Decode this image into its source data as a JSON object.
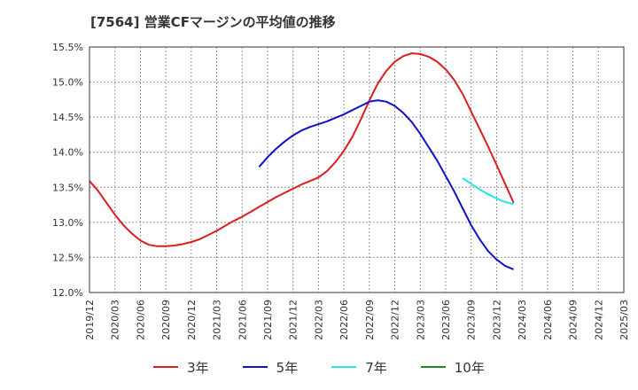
{
  "chart_data": {
    "type": "line",
    "title": "[7564]  営業CFマージンの平均値の推移",
    "xlabel": "",
    "ylabel": "",
    "ylim": [
      12.0,
      15.5
    ],
    "y_ticks": [
      "12.0%",
      "12.5%",
      "13.0%",
      "13.5%",
      "14.0%",
      "14.5%",
      "15.0%",
      "15.5%"
    ],
    "x_ticks": [
      "2019/12",
      "2020/03",
      "2020/06",
      "2020/09",
      "2020/12",
      "2021/03",
      "2021/06",
      "2021/09",
      "2021/12",
      "2022/03",
      "2022/06",
      "2022/09",
      "2022/12",
      "2023/03",
      "2023/06",
      "2023/09",
      "2023/12",
      "2024/03",
      "2024/06",
      "2024/09",
      "2024/12",
      "2025/03"
    ],
    "x_range": [
      "2019/12",
      "2025/03"
    ],
    "grid": true,
    "legend_position": "bottom",
    "series": [
      {
        "name": "3年",
        "color": "#dd1c1c",
        "points": [
          [
            "2019/12",
            13.59
          ],
          [
            "2020/01",
            13.45
          ],
          [
            "2020/02",
            13.28
          ],
          [
            "2020/03",
            13.11
          ],
          [
            "2020/04",
            12.96
          ],
          [
            "2020/05",
            12.84
          ],
          [
            "2020/06",
            12.74
          ],
          [
            "2020/07",
            12.68
          ],
          [
            "2020/08",
            12.66
          ],
          [
            "2020/09",
            12.66
          ],
          [
            "2020/10",
            12.67
          ],
          [
            "2020/11",
            12.69
          ],
          [
            "2020/12",
            12.72
          ],
          [
            "2021/01",
            12.76
          ],
          [
            "2021/02",
            12.82
          ],
          [
            "2021/03",
            12.88
          ],
          [
            "2021/04",
            12.95
          ],
          [
            "2021/05",
            13.02
          ],
          [
            "2021/06",
            13.08
          ],
          [
            "2021/07",
            13.15
          ],
          [
            "2021/08",
            13.22
          ],
          [
            "2021/09",
            13.29
          ],
          [
            "2021/10",
            13.36
          ],
          [
            "2021/11",
            13.42
          ],
          [
            "2021/12",
            13.48
          ],
          [
            "2022/01",
            13.54
          ],
          [
            "2022/02",
            13.59
          ],
          [
            "2022/03",
            13.64
          ],
          [
            "2022/04",
            13.73
          ],
          [
            "2022/05",
            13.86
          ],
          [
            "2022/06",
            14.02
          ],
          [
            "2022/07",
            14.22
          ],
          [
            "2022/08",
            14.47
          ],
          [
            "2022/09",
            14.74
          ],
          [
            "2022/10",
            14.98
          ],
          [
            "2022/11",
            15.16
          ],
          [
            "2022/12",
            15.29
          ],
          [
            "2023/01",
            15.37
          ],
          [
            "2023/02",
            15.41
          ],
          [
            "2023/03",
            15.4
          ],
          [
            "2023/04",
            15.36
          ],
          [
            "2023/05",
            15.29
          ],
          [
            "2023/06",
            15.18
          ],
          [
            "2023/07",
            15.03
          ],
          [
            "2023/08",
            14.83
          ],
          [
            "2023/09",
            14.58
          ],
          [
            "2023/10",
            14.33
          ],
          [
            "2023/11",
            14.08
          ],
          [
            "2023/12",
            13.82
          ],
          [
            "2024/01",
            13.55
          ],
          [
            "2024/02",
            13.28
          ]
        ]
      },
      {
        "name": "5年",
        "color": "#1111cc",
        "points": [
          [
            "2021/08",
            13.79
          ],
          [
            "2021/09",
            13.93
          ],
          [
            "2021/10",
            14.05
          ],
          [
            "2021/11",
            14.15
          ],
          [
            "2021/12",
            14.24
          ],
          [
            "2022/01",
            14.31
          ],
          [
            "2022/02",
            14.36
          ],
          [
            "2022/03",
            14.4
          ],
          [
            "2022/04",
            14.44
          ],
          [
            "2022/05",
            14.49
          ],
          [
            "2022/06",
            14.54
          ],
          [
            "2022/07",
            14.6
          ],
          [
            "2022/08",
            14.66
          ],
          [
            "2022/09",
            14.72
          ],
          [
            "2022/10",
            14.74
          ],
          [
            "2022/11",
            14.72
          ],
          [
            "2022/12",
            14.66
          ],
          [
            "2023/01",
            14.56
          ],
          [
            "2023/02",
            14.43
          ],
          [
            "2023/03",
            14.26
          ],
          [
            "2023/04",
            14.07
          ],
          [
            "2023/05",
            13.88
          ],
          [
            "2023/06",
            13.66
          ],
          [
            "2023/07",
            13.44
          ],
          [
            "2023/08",
            13.2
          ],
          [
            "2023/09",
            12.96
          ],
          [
            "2023/10",
            12.76
          ],
          [
            "2023/11",
            12.59
          ],
          [
            "2023/12",
            12.47
          ],
          [
            "2024/01",
            12.38
          ],
          [
            "2024/02",
            12.33
          ]
        ]
      },
      {
        "name": "7年",
        "color": "#22e6e6",
        "points": [
          [
            "2023/08",
            13.63
          ],
          [
            "2023/09",
            13.55
          ],
          [
            "2023/10",
            13.47
          ],
          [
            "2023/11",
            13.4
          ],
          [
            "2023/12",
            13.34
          ],
          [
            "2024/01",
            13.29
          ],
          [
            "2024/02",
            13.26
          ]
        ]
      },
      {
        "name": "10年",
        "color": "#1f8c1f",
        "points": []
      }
    ]
  }
}
